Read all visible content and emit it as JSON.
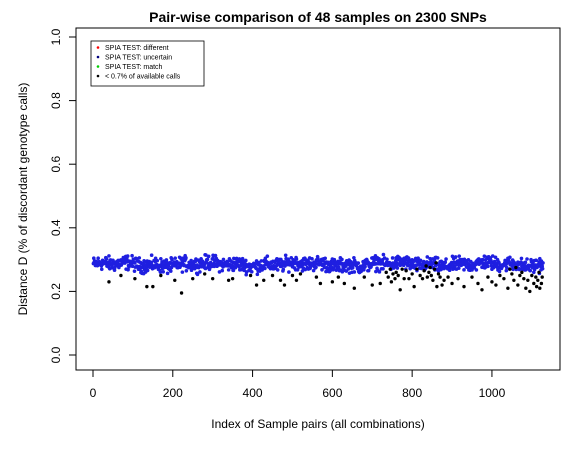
{
  "chart_data": {
    "type": "scatter",
    "title": "Pair-wise comparison of 48 samples on 2300 SNPs",
    "title_color": "#4a6e9e",
    "xlabel": "Index of Sample pairs (all combinations)",
    "ylabel": "Distance D (% of discordant genotype calls)",
    "xlim": [
      0,
      1128
    ],
    "ylim": [
      0,
      1
    ],
    "x_ticks": [
      0,
      200,
      400,
      600,
      800,
      1000
    ],
    "x_tick_labels": [
      "0",
      "200",
      "400",
      "600",
      "800",
      "1000"
    ],
    "y_ticks": [
      0.0,
      0.2,
      0.4,
      0.6,
      0.8,
      1.0
    ],
    "y_tick_labels": [
      "0.0",
      "0.2",
      "0.4",
      "0.6",
      "0.8",
      "1.0"
    ],
    "grid": false,
    "legend_position": "top-left",
    "legend": [
      {
        "label": "SPIA TEST: different",
        "color": "#ff0000"
      },
      {
        "label": "SPIA TEST: uncertain",
        "color": "#000080"
      },
      {
        "label": "SPIA TEST: match",
        "color": "#00cc00"
      },
      {
        "label": "< 0.7% of available calls",
        "color": "#000000"
      }
    ],
    "series": [
      {
        "name": "SPIA TEST: match",
        "color": "#1f1fe0",
        "band": {
          "x_start": 1,
          "x_end": 1128,
          "y_center": 0.285,
          "y_spread": 0.022,
          "n": 1128
        }
      },
      {
        "name": "< 0.7% of available calls",
        "color": "#000000",
        "points": [
          [
            40,
            0.23
          ],
          [
            70,
            0.25
          ],
          [
            105,
            0.24
          ],
          [
            135,
            0.215
          ],
          [
            150,
            0.215
          ],
          [
            170,
            0.25
          ],
          [
            205,
            0.235
          ],
          [
            222,
            0.195
          ],
          [
            250,
            0.24
          ],
          [
            280,
            0.255
          ],
          [
            300,
            0.24
          ],
          [
            340,
            0.235
          ],
          [
            350,
            0.24
          ],
          [
            395,
            0.25
          ],
          [
            410,
            0.22
          ],
          [
            428,
            0.235
          ],
          [
            450,
            0.25
          ],
          [
            470,
            0.235
          ],
          [
            480,
            0.22
          ],
          [
            500,
            0.25
          ],
          [
            510,
            0.235
          ],
          [
            520,
            0.255
          ],
          [
            560,
            0.245
          ],
          [
            570,
            0.225
          ],
          [
            600,
            0.23
          ],
          [
            615,
            0.245
          ],
          [
            630,
            0.225
          ],
          [
            655,
            0.21
          ],
          [
            680,
            0.245
          ],
          [
            700,
            0.22
          ],
          [
            720,
            0.225
          ],
          [
            735,
            0.26
          ],
          [
            740,
            0.245
          ],
          [
            745,
            0.27
          ],
          [
            748,
            0.23
          ],
          [
            752,
            0.255
          ],
          [
            757,
            0.24
          ],
          [
            760,
            0.26
          ],
          [
            765,
            0.25
          ],
          [
            770,
            0.205
          ],
          [
            775,
            0.27
          ],
          [
            780,
            0.24
          ],
          [
            785,
            0.265
          ],
          [
            792,
            0.24
          ],
          [
            800,
            0.255
          ],
          [
            805,
            0.215
          ],
          [
            812,
            0.27
          ],
          [
            820,
            0.25
          ],
          [
            826,
            0.24
          ],
          [
            830,
            0.265
          ],
          [
            835,
            0.28
          ],
          [
            838,
            0.245
          ],
          [
            842,
            0.26
          ],
          [
            845,
            0.275
          ],
          [
            848,
            0.25
          ],
          [
            852,
            0.235
          ],
          [
            856,
            0.27
          ],
          [
            860,
            0.29
          ],
          [
            862,
            0.215
          ],
          [
            866,
            0.255
          ],
          [
            870,
            0.245
          ],
          [
            875,
            0.22
          ],
          [
            880,
            0.235
          ],
          [
            890,
            0.245
          ],
          [
            900,
            0.225
          ],
          [
            915,
            0.24
          ],
          [
            930,
            0.215
          ],
          [
            950,
            0.245
          ],
          [
            965,
            0.225
          ],
          [
            975,
            0.205
          ],
          [
            990,
            0.245
          ],
          [
            1000,
            0.23
          ],
          [
            1010,
            0.22
          ],
          [
            1020,
            0.25
          ],
          [
            1030,
            0.24
          ],
          [
            1040,
            0.21
          ],
          [
            1045,
            0.27
          ],
          [
            1050,
            0.255
          ],
          [
            1055,
            0.235
          ],
          [
            1060,
            0.275
          ],
          [
            1065,
            0.22
          ],
          [
            1070,
            0.25
          ],
          [
            1075,
            0.26
          ],
          [
            1080,
            0.24
          ],
          [
            1085,
            0.21
          ],
          [
            1090,
            0.235
          ],
          [
            1095,
            0.2
          ],
          [
            1100,
            0.25
          ],
          [
            1105,
            0.225
          ],
          [
            1110,
            0.245
          ],
          [
            1112,
            0.215
          ],
          [
            1115,
            0.235
          ],
          [
            1118,
            0.26
          ],
          [
            1120,
            0.21
          ],
          [
            1124,
            0.225
          ],
          [
            1126,
            0.245
          ]
        ]
      }
    ]
  }
}
